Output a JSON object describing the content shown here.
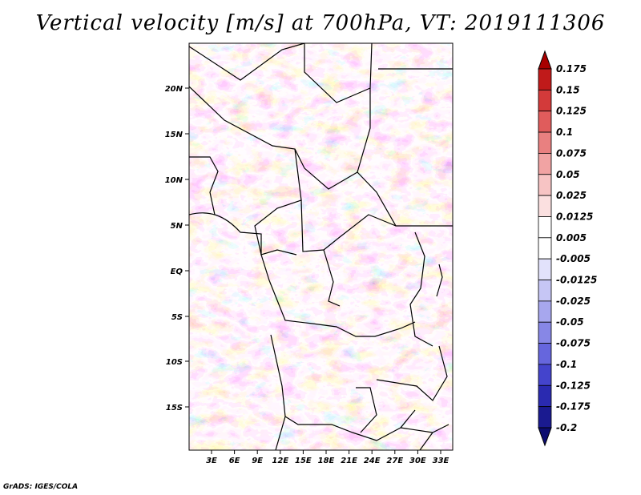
{
  "title": "Vertical velocity [m/s] at 700hPa, VT: 2019111306",
  "footer": "GrADS: IGES/COLA",
  "map": {
    "lat_labels": [
      "20N",
      "15N",
      "10N",
      "5N",
      "EQ",
      "5S",
      "10S",
      "15S"
    ],
    "lon_labels": [
      "3E",
      "6E",
      "9E",
      "12E",
      "15E",
      "18E",
      "21E",
      "24E",
      "27E",
      "30E",
      "33E"
    ]
  },
  "colorbar": {
    "levels": [
      "0.175",
      "0.15",
      "0.125",
      "0.1",
      "0.075",
      "0.05",
      "0.025",
      "0.0125",
      "0.005",
      "-0.005",
      "-0.0125",
      "-0.025",
      "-0.05",
      "-0.075",
      "-0.1",
      "-0.125",
      "-0.175",
      "-0.2"
    ],
    "colors": [
      "#a80000",
      "#c01a1a",
      "#d33a3a",
      "#e05c5c",
      "#e98080",
      "#f1a3a3",
      "#f7c4c4",
      "#fbe0e0",
      "#ffffff",
      "#ffffff",
      "#e2e2fb",
      "#c6c6f5",
      "#a7a7ee",
      "#8787e6",
      "#6666dd",
      "#4444cc",
      "#2a2ab0",
      "#1a1a90",
      "#0c0c70"
    ]
  }
}
